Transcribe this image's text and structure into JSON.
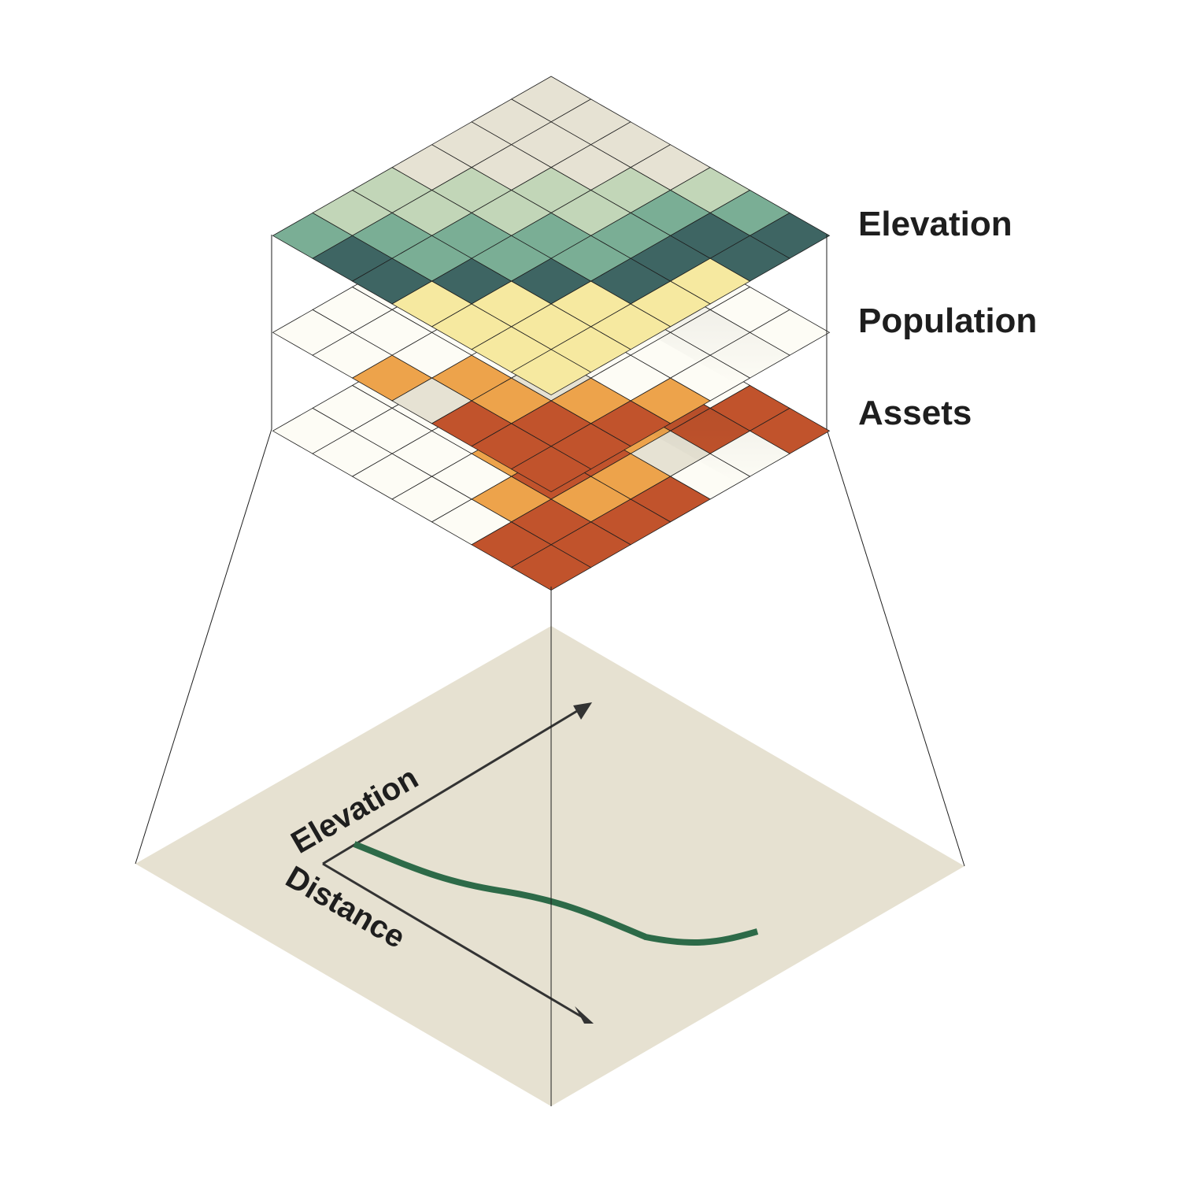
{
  "layers": [
    {
      "name": "Elevation",
      "grid": [
        [
          "light",
          "light",
          "light",
          "light",
          "sage",
          "teal",
          "dark"
        ],
        [
          "light",
          "light",
          "light",
          "sage",
          "teal",
          "dark",
          "dark"
        ],
        [
          "light",
          "light",
          "sage",
          "sage",
          "teal",
          "dark",
          "yellow"
        ],
        [
          "light",
          "sage",
          "sage",
          "teal",
          "teal",
          "dark",
          "yellow"
        ],
        [
          "sage",
          "sage",
          "teal",
          "teal",
          "dark",
          "yellow",
          "yellow"
        ],
        [
          "sage",
          "teal",
          "teal",
          "dark",
          "yellow",
          "yellow",
          "yellow"
        ],
        [
          "teal",
          "dark",
          "dark",
          "yellow",
          "yellow",
          "yellow",
          "yellow"
        ]
      ]
    },
    {
      "name": "Population",
      "grid": [
        [
          "blank",
          "blank",
          "blank",
          "blank",
          "blank",
          "blank",
          "blank"
        ],
        [
          "blank",
          "blank",
          "blank",
          "blank",
          "blank",
          "blank",
          "blank"
        ],
        [
          "blank",
          "blank",
          "blank",
          "blank",
          "blank",
          "blank",
          "blank"
        ],
        [
          "blank",
          "blank",
          "blank",
          "blank",
          "blank",
          "blank",
          "orange"
        ],
        [
          "blank",
          "blank",
          "blank",
          "blank",
          "beige",
          "orange",
          "red"
        ],
        [
          "blank",
          "blank",
          "blank",
          "orange",
          "orange",
          "red",
          "red"
        ],
        [
          "blank",
          "blank",
          "orange",
          "beige",
          "red",
          "red",
          "red"
        ]
      ]
    },
    {
      "name": "Assets",
      "grid": [
        [
          "blank",
          "blank",
          "blank",
          "blank",
          "blank",
          "red",
          "red"
        ],
        [
          "blank",
          "blank",
          "blank",
          "blank",
          "red",
          "red",
          "blank"
        ],
        [
          "blank",
          "blank",
          "blank",
          "red",
          "orange",
          "beige",
          "blank"
        ],
        [
          "blank",
          "blank",
          "blank",
          "orange",
          "red",
          "orange",
          "red"
        ],
        [
          "blank",
          "blank",
          "blank",
          "orange",
          "red",
          "orange",
          "red"
        ],
        [
          "blank",
          "blank",
          "blank",
          "blank",
          "orange",
          "red",
          "red"
        ],
        [
          "blank",
          "blank",
          "blank",
          "blank",
          "blank",
          "red",
          "red"
        ]
      ]
    }
  ],
  "palette": {
    "light": "#e6e2d3",
    "sage": "#c2d6b8",
    "teal": "#7aae95",
    "dark": "#3e6563",
    "yellow": "#f6e9a0",
    "orange": "#eda34b",
    "red": "#c1532c",
    "beige": "#e6e2d3",
    "blank": "#fdfcf5",
    "base_panel": "#e6e1d1",
    "profile_line": "#2d6a48",
    "grid_line": "#1e1e1e"
  },
  "profile": {
    "axis_y_label": "Elevation",
    "axis_x_label": "Distance"
  }
}
